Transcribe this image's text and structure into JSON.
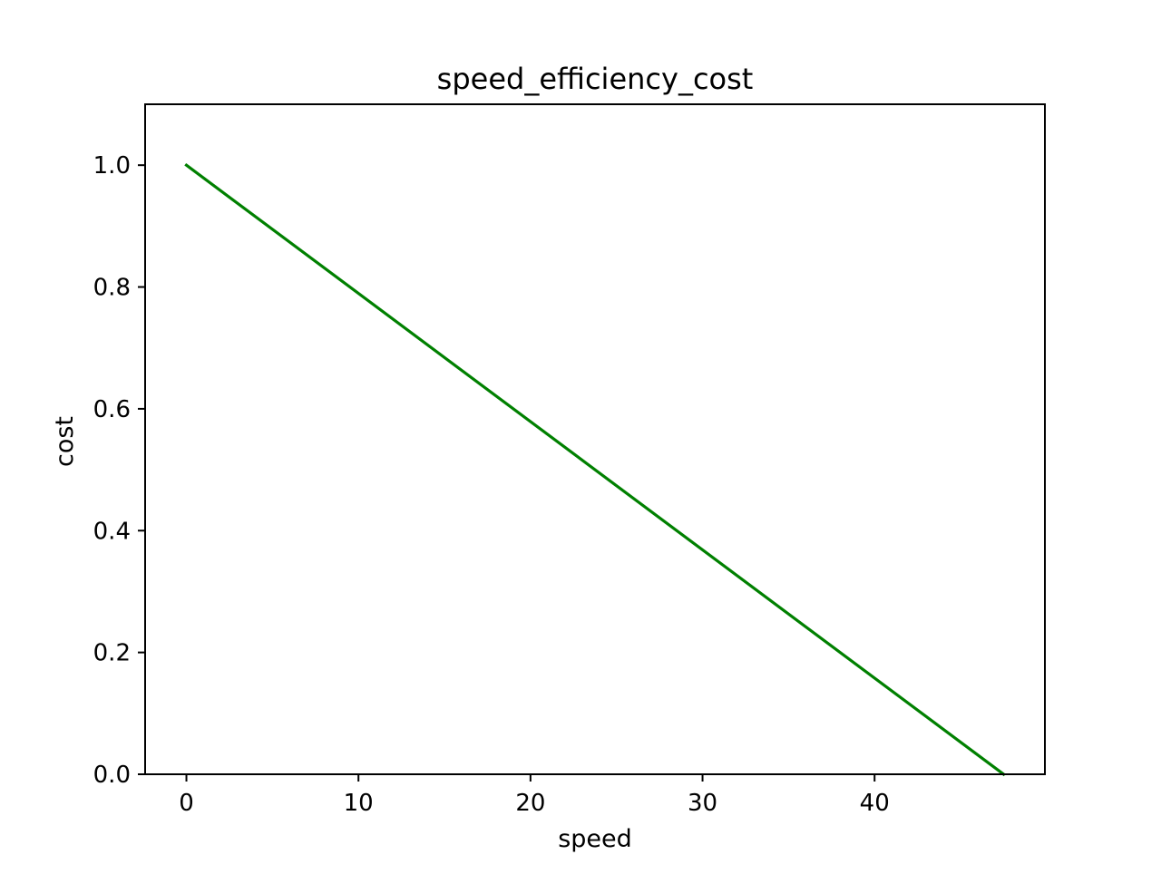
{
  "chart_data": {
    "type": "line",
    "title": "speed_efficiency_cost",
    "xlabel": "speed",
    "ylabel": "cost",
    "xlim": [
      -2.4,
      49.9
    ],
    "ylim": [
      0.0,
      1.1
    ],
    "x_ticks": [
      0,
      10,
      20,
      30,
      40
    ],
    "x_tick_labels": [
      "0",
      "10",
      "20",
      "30",
      "40"
    ],
    "y_ticks": [
      0.0,
      0.2,
      0.4,
      0.6,
      0.8,
      1.0
    ],
    "y_tick_labels": [
      "0.0",
      "0.2",
      "0.4",
      "0.6",
      "0.8",
      "1.0"
    ],
    "grid": false,
    "series": [
      {
        "color": "#008000",
        "x": [
          0,
          47.5
        ],
        "y": [
          1.0,
          0.0
        ]
      }
    ]
  }
}
